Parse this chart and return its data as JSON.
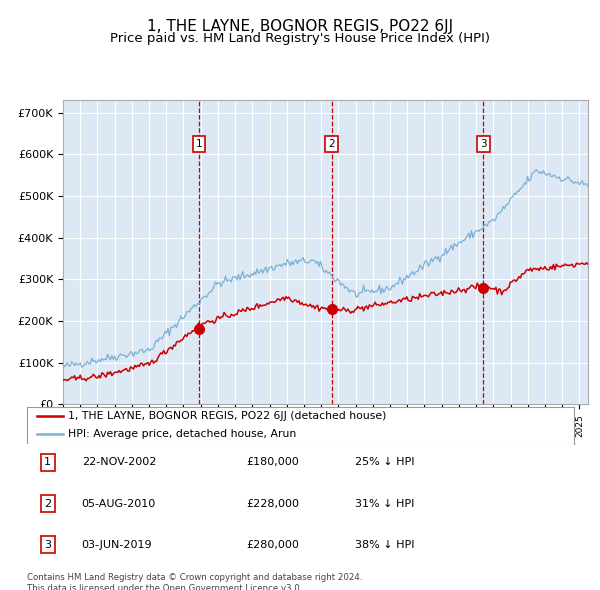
{
  "title": "1, THE LAYNE, BOGNOR REGIS, PO22 6JJ",
  "subtitle": "Price paid vs. HM Land Registry's House Price Index (HPI)",
  "title_fontsize": 11,
  "subtitle_fontsize": 9.5,
  "bg_color": "#dce9f5",
  "grid_color": "#ffffff",
  "hpi_color": "#7bafd4",
  "price_color": "#cc0000",
  "sale_dates": [
    2002.9,
    2010.6,
    2019.42
  ],
  "sale_prices": [
    180000,
    228000,
    280000
  ],
  "sale_labels": [
    "1",
    "2",
    "3"
  ],
  "sale_info": [
    [
      "22-NOV-2002",
      "£180,000",
      "25% ↓ HPI"
    ],
    [
      "05-AUG-2010",
      "£228,000",
      "31% ↓ HPI"
    ],
    [
      "03-JUN-2019",
      "£280,000",
      "38% ↓ HPI"
    ]
  ],
  "legend_labels": [
    "1, THE LAYNE, BOGNOR REGIS, PO22 6JJ (detached house)",
    "HPI: Average price, detached house, Arun"
  ],
  "footer": "Contains HM Land Registry data © Crown copyright and database right 2024.\nThis data is licensed under the Open Government Licence v3.0.",
  "ylim": [
    0,
    730000
  ],
  "yticks": [
    0,
    100000,
    200000,
    300000,
    400000,
    500000,
    600000,
    700000
  ],
  "ytick_labels": [
    "£0",
    "£100K",
    "£200K",
    "£300K",
    "£400K",
    "£500K",
    "£600K",
    "£700K"
  ],
  "xlim_start": 1995,
  "xlim_end": 2025.5
}
